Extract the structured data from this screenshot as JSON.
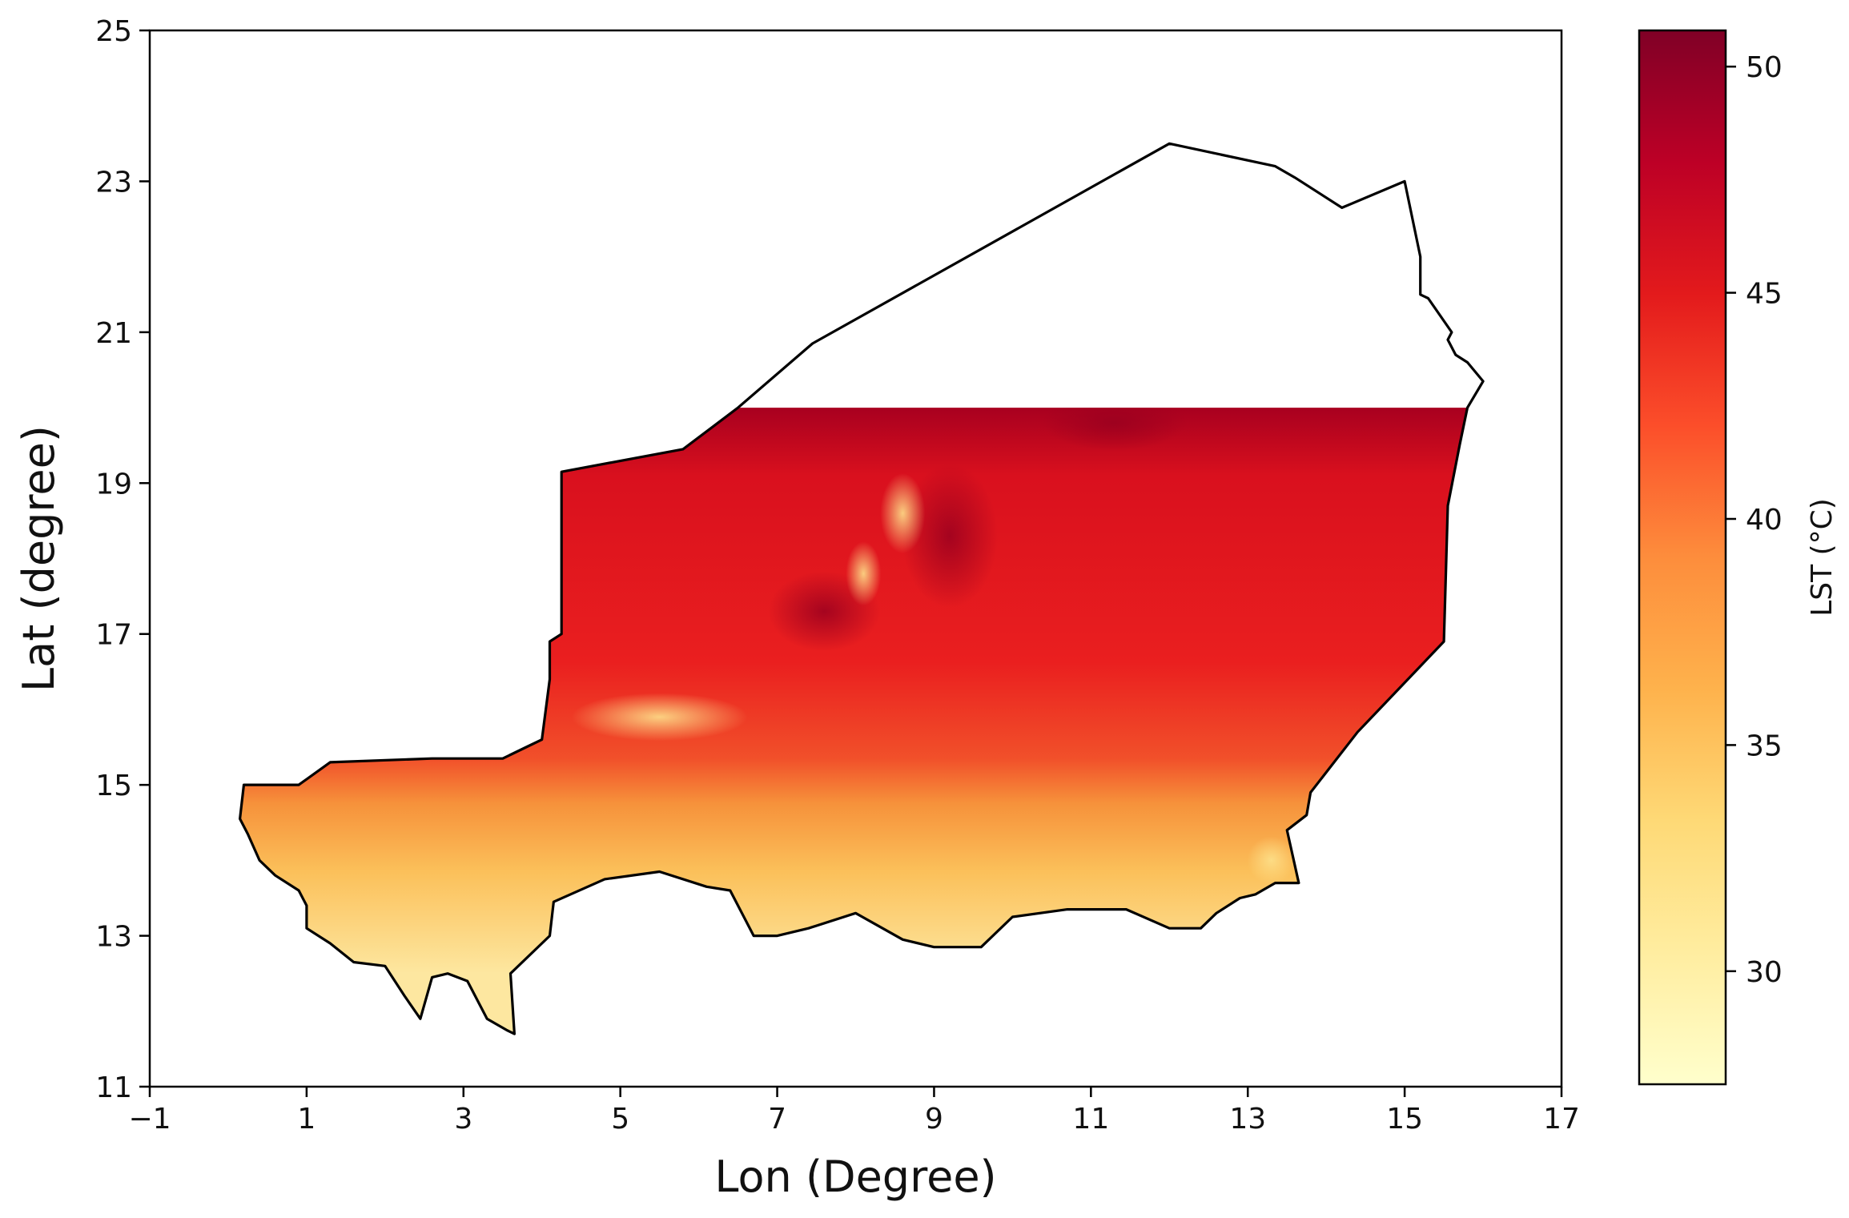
{
  "map": {
    "xlabel": "Lon (Degree)",
    "ylabel": "Lat (degree)",
    "xlim": [
      -1,
      17
    ],
    "ylim": [
      11,
      25
    ],
    "xticks": [
      -1,
      1,
      3,
      5,
      7,
      9,
      11,
      13,
      15,
      17
    ],
    "yticks": [
      11,
      13,
      15,
      17,
      19,
      21,
      23,
      25
    ],
    "xtick_labels": [
      "−1",
      "1",
      "3",
      "5",
      "7",
      "9",
      "11",
      "13",
      "15",
      "17"
    ],
    "ytick_labels": [
      "11",
      "13",
      "15",
      "17",
      "19",
      "21",
      "23",
      "25"
    ],
    "data_coverage_max_lat": 20
  },
  "colorbar": {
    "label": "LST (°C)",
    "vmin": 27.5,
    "vmax": 50.8,
    "ticks": [
      30,
      35,
      40,
      45,
      50
    ],
    "tick_labels": [
      "30",
      "35",
      "40",
      "45",
      "50"
    ],
    "colormap": "YlOrRd",
    "colors": [
      "#ffffcc",
      "#ffeda0",
      "#fed976",
      "#feb24c",
      "#fd8d3c",
      "#fc4e2a",
      "#e31a1c",
      "#bd0026",
      "#800026"
    ]
  },
  "colors": {
    "cool_south": "#fde08a",
    "warm_mid": "#f25a2a",
    "hot_north": "#e8141c",
    "hottest": "#a8001f",
    "border": "#000000"
  }
}
